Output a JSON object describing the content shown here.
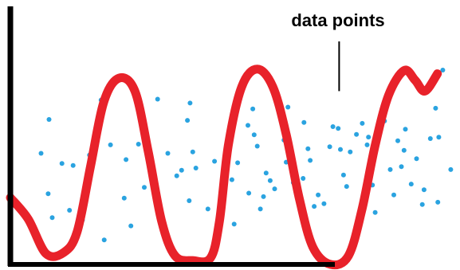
{
  "colors": {
    "background": "#ffffff",
    "axis": "#000000",
    "curve": "#e8222a",
    "points": "#2aa3e0",
    "annotation": "#000000"
  },
  "chart_data": {
    "type": "scatter",
    "title": "",
    "xlabel": "",
    "ylabel": "",
    "xlim": [
      0,
      100
    ],
    "ylim": [
      0,
      100
    ],
    "grid": false,
    "axes": {
      "y_axis_visible": true,
      "x_axis_visible": true,
      "tick_labels": false
    },
    "annotation": {
      "text": "data points",
      "points_to": [
        73.9,
        77.8
      ]
    },
    "series": [
      {
        "kind": "scatter",
        "values": [
          [
            20.4,
            75.9
          ],
          [
            8.7,
            66.9
          ],
          [
            11.6,
            46.6
          ],
          [
            6.9,
            51.3
          ],
          [
            8.5,
            32.6
          ],
          [
            9.4,
            21.6
          ],
          [
            13.3,
            25.0
          ],
          [
            17.8,
            50.5
          ],
          [
            14.1,
            45.7
          ],
          [
            16.2,
            20.5
          ],
          [
            21.1,
            11.3
          ],
          [
            22.5,
            55.2
          ],
          [
            27.1,
            17.8
          ],
          [
            26.0,
            48.4
          ],
          [
            25.6,
            30.6
          ],
          [
            28.8,
            55.5
          ],
          [
            30.5,
            59.4
          ],
          [
            30.1,
            35.6
          ],
          [
            33.1,
            76.3
          ],
          [
            35.4,
            51.3
          ],
          [
            37.4,
            40.9
          ],
          [
            38.5,
            43.5
          ],
          [
            39.8,
            66.5
          ],
          [
            40.4,
            74.5
          ],
          [
            41.0,
            51.9
          ],
          [
            40.2,
            29.4
          ],
          [
            41.7,
            44.5
          ],
          [
            44.4,
            25.6
          ],
          [
            45.9,
            47.6
          ],
          [
            49.8,
            39.1
          ],
          [
            51.1,
            46.9
          ],
          [
            50.3,
            18.6
          ],
          [
            53.6,
            32.9
          ],
          [
            53.4,
            64.2
          ],
          [
            54.5,
            71.8
          ],
          [
            54.8,
            59.8
          ],
          [
            55.5,
            54.6
          ],
          [
            57.5,
            42.2
          ],
          [
            56.2,
            25.6
          ],
          [
            58.4,
            38.7
          ],
          [
            56.9,
            31.3
          ],
          [
            59.4,
            34.9
          ],
          [
            62.0,
            47.2
          ],
          [
            63.6,
            37.8
          ],
          [
            62.4,
            72.6
          ],
          [
            61.5,
            57.4
          ],
          [
            66.0,
            65.5
          ],
          [
            66.9,
            53.4
          ],
          [
            67.4,
            48.0
          ],
          [
            65.8,
            39.7
          ],
          [
            68.3,
            26.8
          ],
          [
            69.2,
            32.1
          ],
          [
            70.5,
            28.0
          ],
          [
            71.8,
            54.3
          ],
          [
            73.7,
            62.8
          ],
          [
            72.5,
            63.6
          ],
          [
            74.2,
            53.1
          ],
          [
            74.9,
            41.3
          ],
          [
            75.6,
            36.0
          ],
          [
            76.4,
            51.9
          ],
          [
            77.8,
            60.0
          ],
          [
            79.1,
            65.1
          ],
          [
            80.5,
            58.8
          ],
          [
            80.2,
            55.2
          ],
          [
            81.4,
            36.6
          ],
          [
            82.0,
            24.0
          ],
          [
            84.1,
            66.2
          ],
          [
            85.4,
            43.8
          ],
          [
            86.2,
            32.1
          ],
          [
            87.9,
            45.1
          ],
          [
            87.1,
            57.1
          ],
          [
            88.5,
            52.7
          ],
          [
            88.8,
            62.4
          ],
          [
            90.1,
            37.1
          ],
          [
            91.3,
            48.8
          ],
          [
            93.0,
            34.5
          ],
          [
            92.6,
            27.7
          ],
          [
            94.4,
            58.1
          ],
          [
            95.6,
            72.1
          ],
          [
            96.3,
            58.7
          ],
          [
            96.1,
            28.7
          ],
          [
            97.2,
            89.7
          ],
          [
            99.0,
            43.8
          ]
        ]
      },
      {
        "kind": "line",
        "values": [
          [
            0.0,
            30.8
          ],
          [
            4.0,
            21.0
          ],
          [
            8.0,
            5.0
          ],
          [
            12.0,
            5.5
          ],
          [
            15.0,
            15.0
          ],
          [
            18.0,
            45.0
          ],
          [
            21.0,
            75.0
          ],
          [
            24.4,
            86.0
          ],
          [
            28.0,
            80.0
          ],
          [
            31.0,
            52.0
          ],
          [
            34.0,
            20.0
          ],
          [
            37.0,
            4.0
          ],
          [
            41.0,
            1.8
          ],
          [
            45.0,
            3.0
          ],
          [
            47.0,
            20.0
          ],
          [
            49.0,
            55.0
          ],
          [
            52.0,
            82.0
          ],
          [
            55.5,
            90.2
          ],
          [
            59.0,
            82.0
          ],
          [
            62.0,
            60.0
          ],
          [
            65.0,
            30.0
          ],
          [
            68.0,
            8.0
          ],
          [
            72.0,
            0.0
          ],
          [
            76.0,
            4.0
          ],
          [
            79.0,
            25.0
          ],
          [
            82.0,
            55.0
          ],
          [
            85.0,
            78.0
          ],
          [
            88.5,
            89.5
          ],
          [
            91.0,
            85.0
          ],
          [
            93.2,
            80.0
          ],
          [
            96.0,
            88.0
          ]
        ]
      }
    ]
  }
}
